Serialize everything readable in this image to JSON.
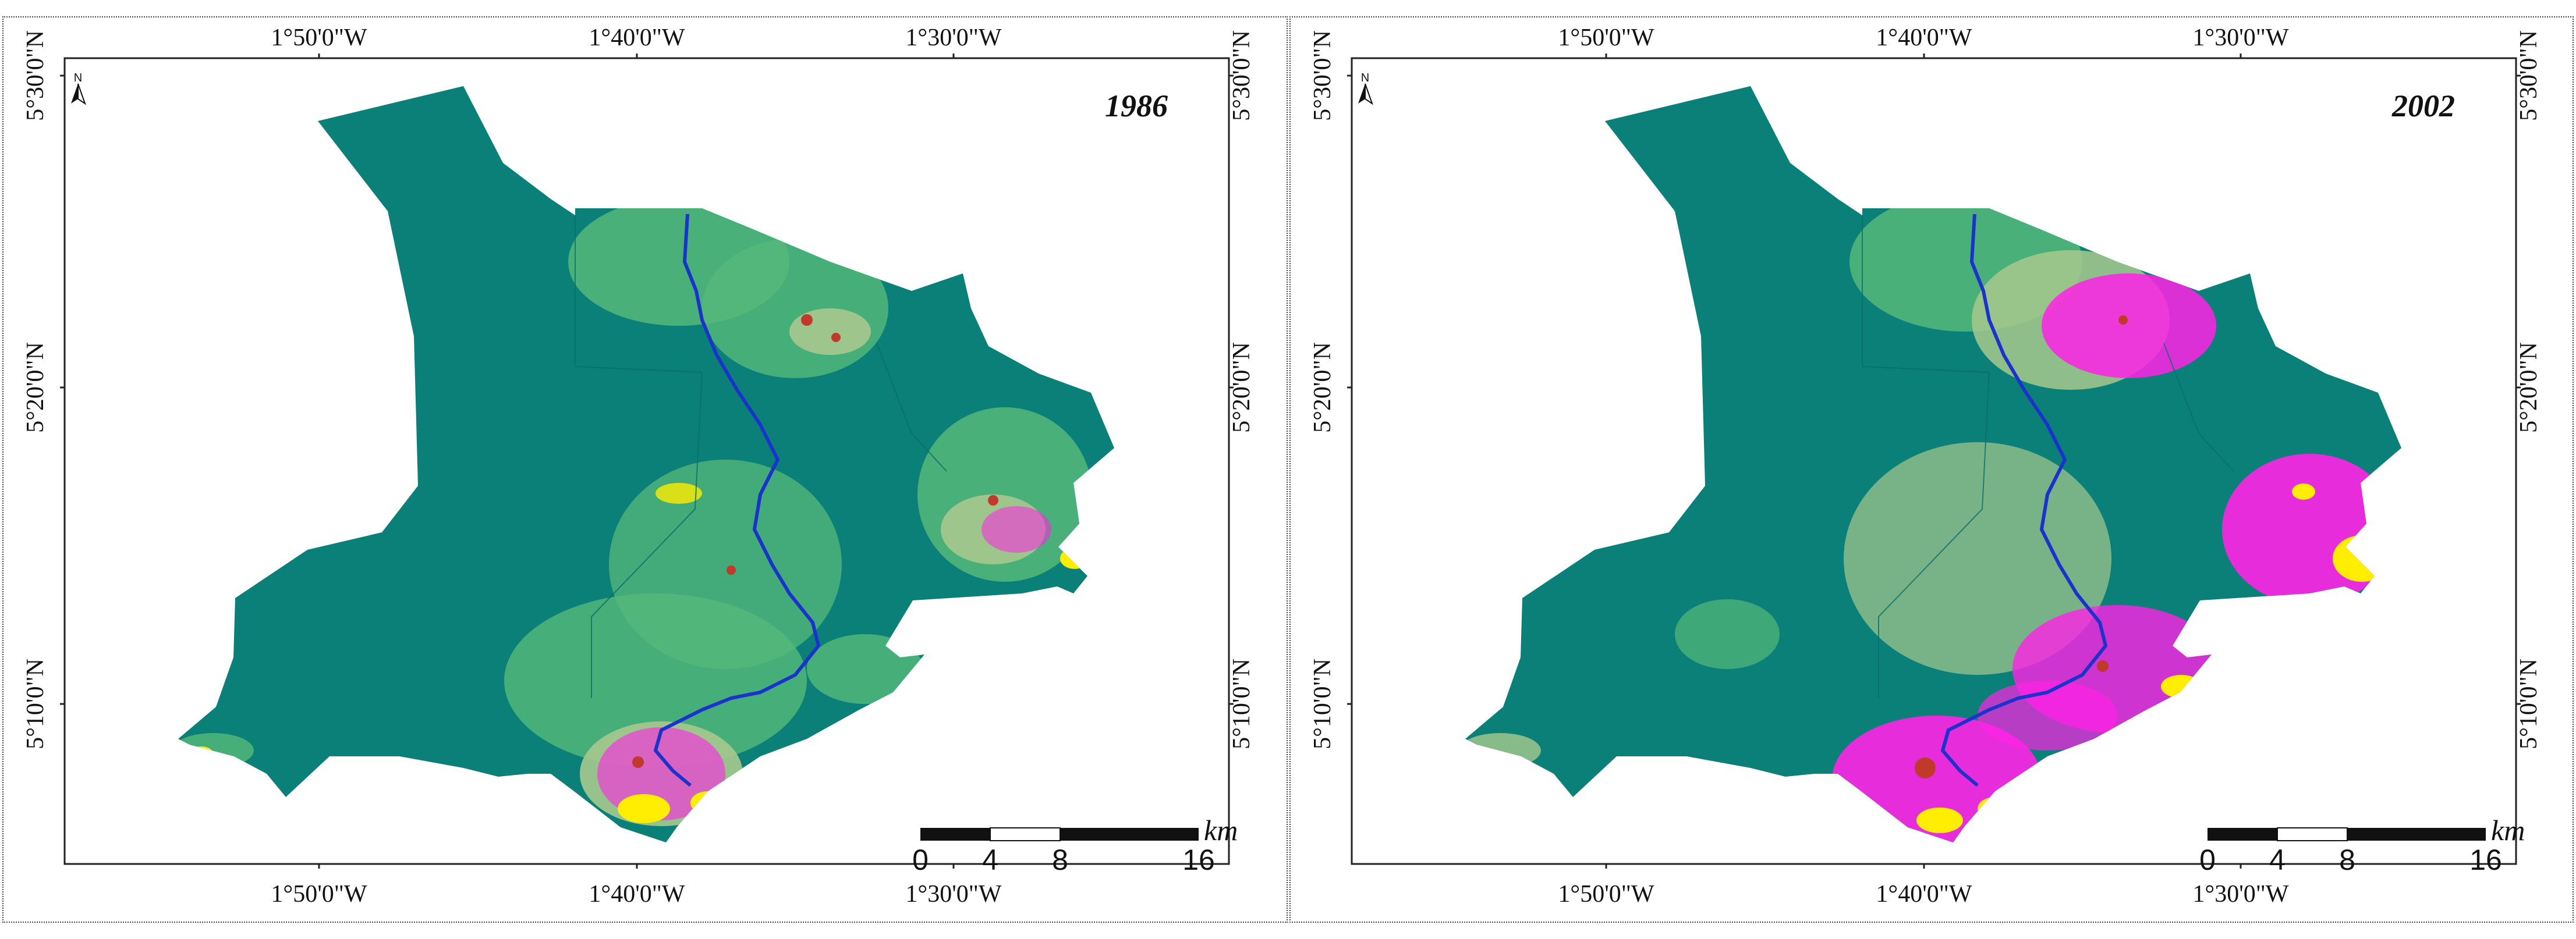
{
  "colors": {
    "forest": "#0b8078",
    "vegetation_light": "#55b979",
    "grass": "#a7c98e",
    "bare": "#c8a86b",
    "urban": "#ff22e6",
    "built_core": "#ffee00",
    "settlement": "#c0392b",
    "water": "#1b33cc"
  },
  "axis": {
    "top_labels": [
      "1°50'0\"W",
      "1°40'0\"W",
      "1°30'0\"W"
    ],
    "bottom_labels": [
      "1°50'0\"W",
      "1°40'0\"W",
      "1°30'0\"W"
    ],
    "left_labels": [
      "5°30'0\"N",
      "5°20'0\"N",
      "5°10'0\"N"
    ],
    "right_labels": [
      "5°30'0\"N",
      "5°20'0\"N",
      "5°10'0\"N"
    ]
  },
  "north_arrow": {
    "letter": "N",
    "icon": "north-arrow-icon"
  },
  "scale_bar": {
    "labels": [
      "0",
      "4",
      "8",
      "16"
    ],
    "unit": "km"
  },
  "maps": [
    {
      "year": "1986",
      "urban_extent": "low"
    },
    {
      "year": "2002",
      "urban_extent": "high"
    }
  ]
}
